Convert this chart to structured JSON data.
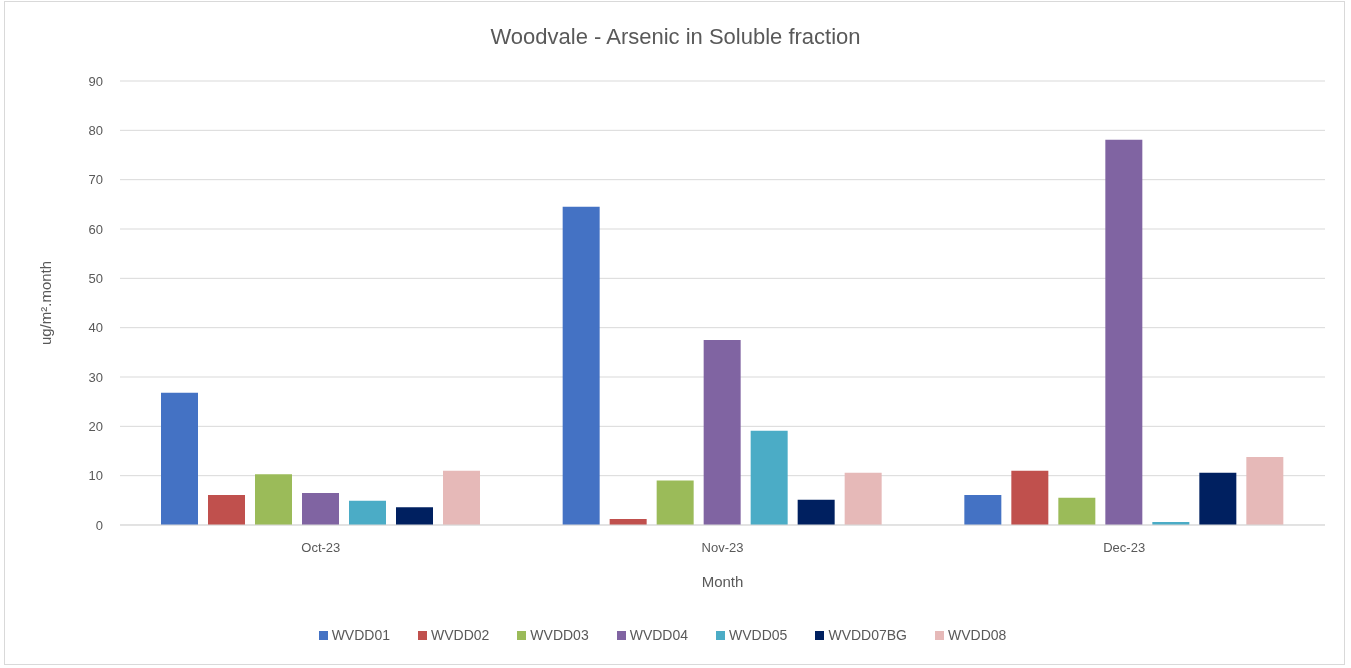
{
  "chart_data": {
    "type": "bar",
    "title": "Woodvale - Arsenic in Soluble fraction",
    "xlabel": "Month",
    "ylabel": "ug/m².month",
    "categories": [
      "Oct-23",
      "Nov-23",
      "Dec-23"
    ],
    "series": [
      {
        "name": "WVDD01",
        "color": "#4472c4",
        "values": [
          26.8,
          64.5,
          6.1
        ]
      },
      {
        "name": "WVDD02",
        "color": "#c0504d",
        "values": [
          6.1,
          1.2,
          11.0
        ]
      },
      {
        "name": "WVDD03",
        "color": "#9bbb59",
        "values": [
          10.3,
          9.0,
          5.5
        ]
      },
      {
        "name": "WVDD04",
        "color": "#8064a2",
        "values": [
          6.5,
          37.5,
          78.1
        ]
      },
      {
        "name": "WVDD05",
        "color": "#4bacc6",
        "values": [
          4.9,
          19.1,
          0.6
        ]
      },
      {
        "name": "WVDD07BG",
        "color": "#002060",
        "values": [
          3.6,
          5.1,
          10.6
        ]
      },
      {
        "name": "WVDD08",
        "color": "#e6b9b8",
        "values": [
          11.0,
          10.6,
          13.8
        ]
      }
    ],
    "ylim": [
      0,
      90
    ],
    "yticks": [
      0,
      10,
      20,
      30,
      40,
      50,
      60,
      70,
      80,
      90
    ],
    "grid": "y",
    "legend": "bottom"
  }
}
